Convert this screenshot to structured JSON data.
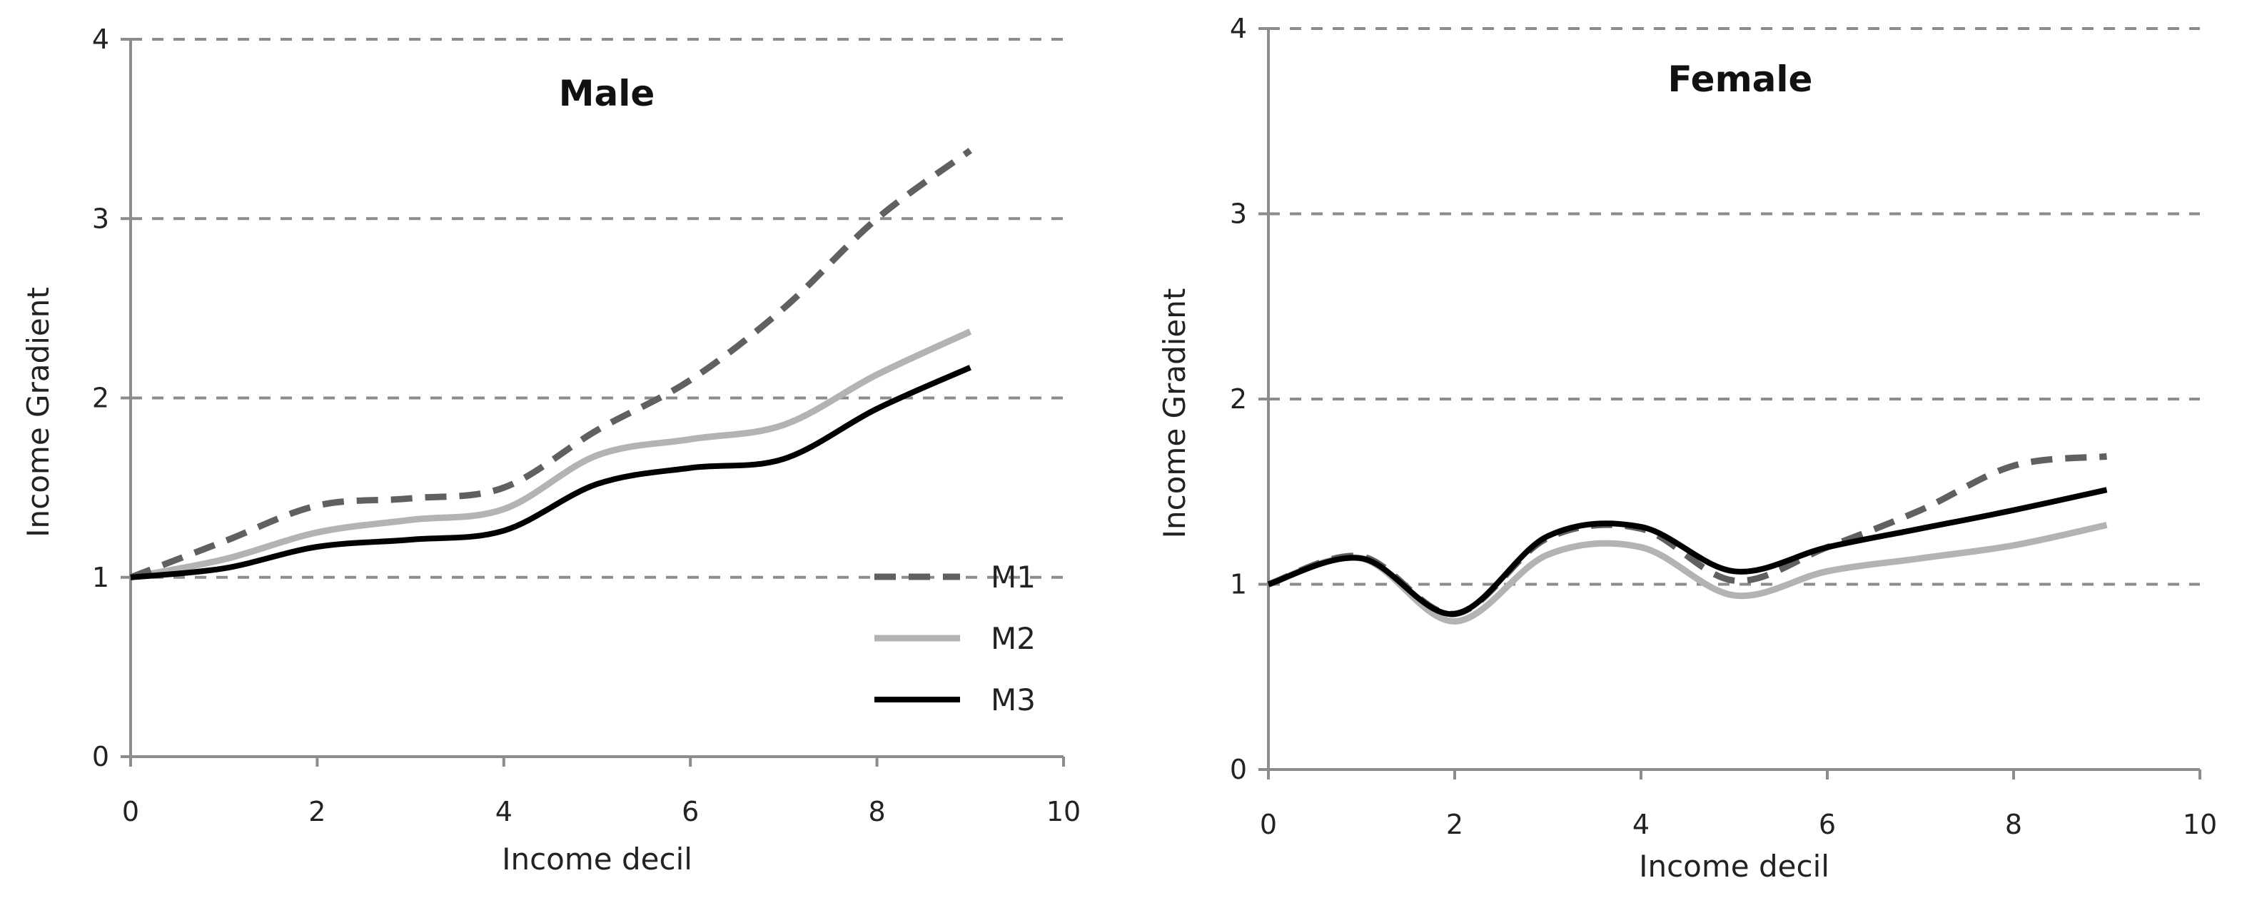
{
  "figure": {
    "background": "#ffffff"
  },
  "series_style": {
    "M1": {
      "color": "#606060",
      "dash": "dashed"
    },
    "M2": {
      "color": "#b3b3b3",
      "dash": "solid"
    },
    "M3": {
      "color": "#000000",
      "dash": "solid"
    }
  },
  "chart_data": [
    {
      "type": "line",
      "title": "Male",
      "xlabel": "Income decil",
      "ylabel": "Income Gradient",
      "xlim": [
        0,
        10
      ],
      "ylim": [
        0,
        4
      ],
      "xticks": [
        "0",
        "2",
        "4",
        "6",
        "8",
        "10"
      ],
      "yticks": [
        "0",
        "1",
        "2",
        "3",
        "4"
      ],
      "grid": "horizontal dashed",
      "legend": {
        "position": "bottom-right",
        "entries": [
          "M1",
          "M2",
          "M3"
        ]
      },
      "x": [
        0,
        1,
        2,
        3,
        4,
        5,
        6,
        7,
        8,
        9
      ],
      "series": [
        {
          "name": "M1",
          "values": [
            1.0,
            1.2,
            1.4,
            1.44,
            1.5,
            1.82,
            2.1,
            2.5,
            3.0,
            3.38
          ]
        },
        {
          "name": "M2",
          "values": [
            1.0,
            1.1,
            1.25,
            1.32,
            1.38,
            1.68,
            1.77,
            1.85,
            2.13,
            2.37
          ]
        },
        {
          "name": "M3",
          "values": [
            1.0,
            1.05,
            1.17,
            1.21,
            1.26,
            1.52,
            1.61,
            1.66,
            1.94,
            2.17
          ]
        }
      ]
    },
    {
      "type": "line",
      "title": "Female",
      "xlabel": "Income decil",
      "ylabel": "Income Gradient",
      "xlim": [
        0,
        10
      ],
      "ylim": [
        0,
        4
      ],
      "xticks": [
        "0",
        "2",
        "4",
        "6",
        "8",
        "10"
      ],
      "yticks": [
        "0",
        "1",
        "2",
        "3",
        "4"
      ],
      "grid": "horizontal dashed",
      "x": [
        0,
        1,
        2,
        3,
        4,
        5,
        6,
        7,
        8,
        9
      ],
      "series": [
        {
          "name": "M1",
          "values": [
            1.0,
            1.15,
            0.84,
            1.25,
            1.3,
            1.02,
            1.2,
            1.4,
            1.64,
            1.69
          ]
        },
        {
          "name": "M2",
          "values": [
            1.0,
            1.14,
            0.8,
            1.16,
            1.2,
            0.94,
            1.07,
            1.14,
            1.21,
            1.32
          ]
        },
        {
          "name": "M3",
          "values": [
            1.0,
            1.14,
            0.84,
            1.26,
            1.31,
            1.07,
            1.2,
            1.3,
            1.4,
            1.51
          ]
        }
      ]
    }
  ]
}
